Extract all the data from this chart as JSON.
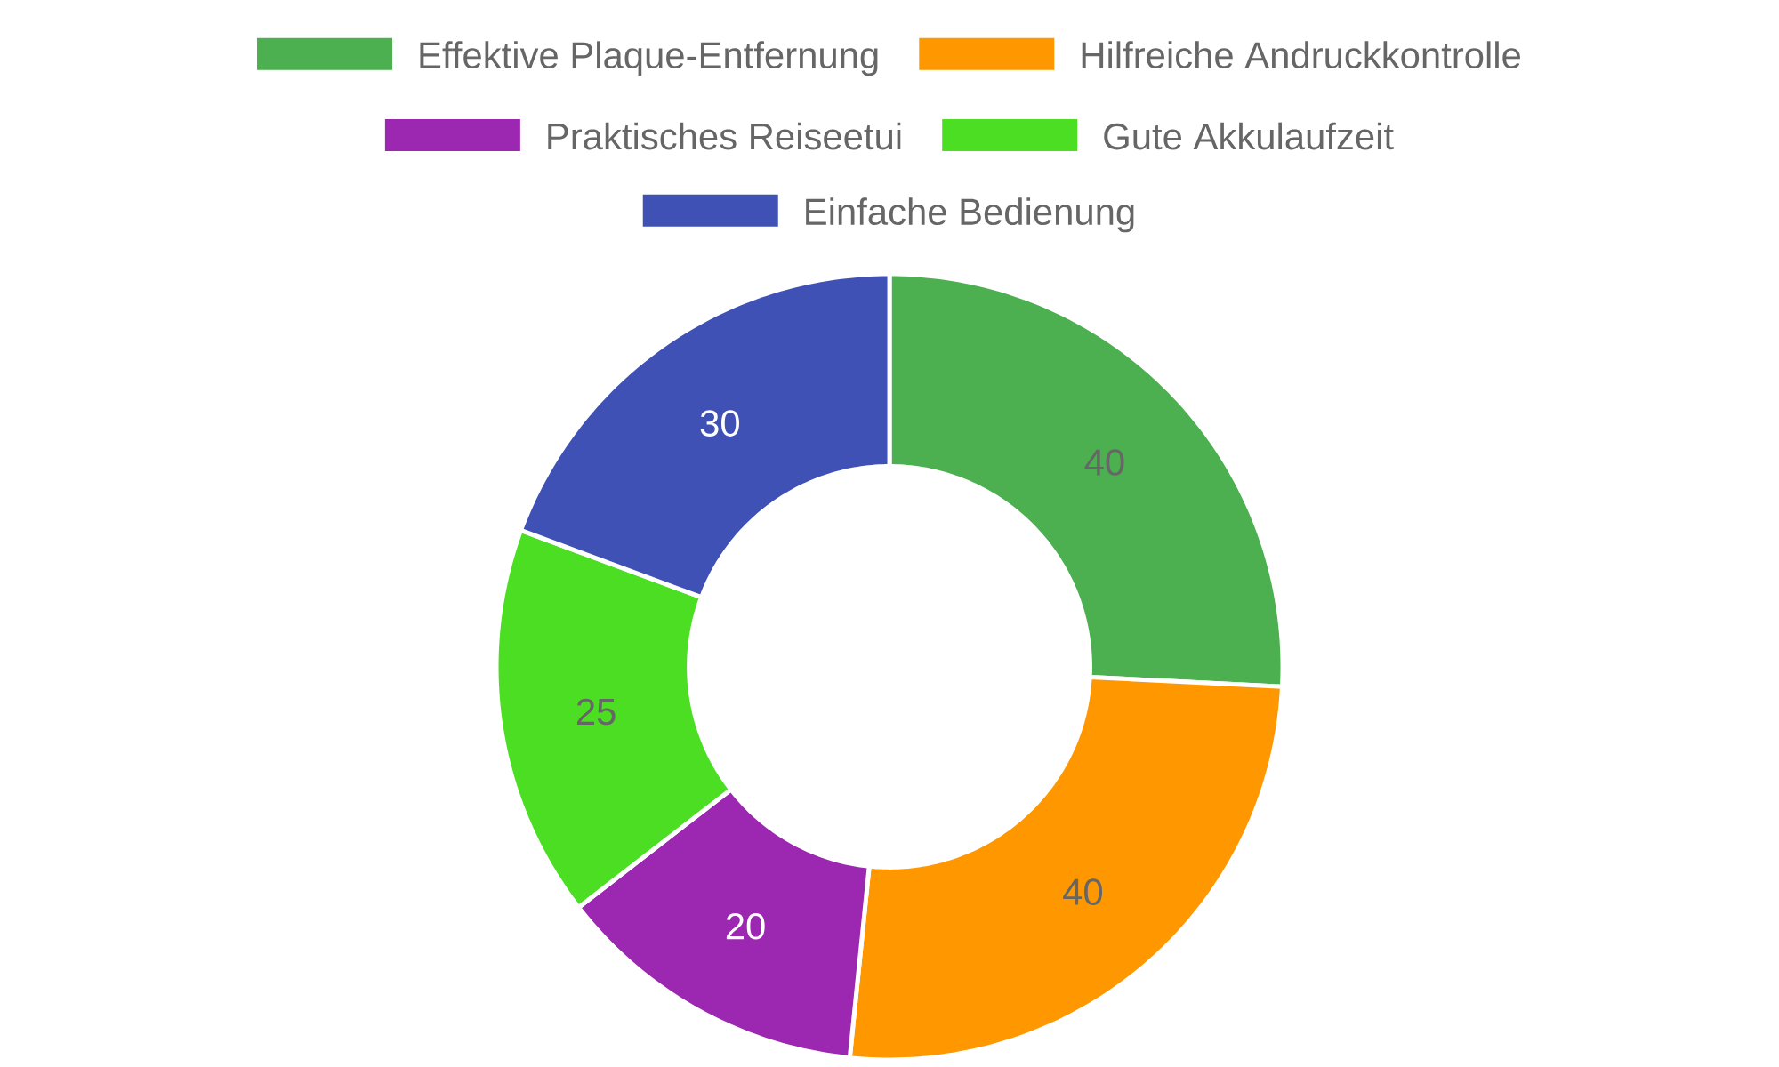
{
  "chart_data": {
    "type": "donut",
    "categories": [
      "Effektive Plaque-Entfernung",
      "Hilfreiche Andruckkontrolle",
      "Praktisches Reiseetui",
      "Gute Akkulaufzeit",
      "Einfache Bedienung"
    ],
    "values": [
      40,
      40,
      20,
      25,
      30
    ],
    "colors": [
      "#4caf50",
      "#ff9800",
      "#9c27b0",
      "#4cde22",
      "#3f51b5"
    ],
    "data_labels": true,
    "legend": "top"
  }
}
